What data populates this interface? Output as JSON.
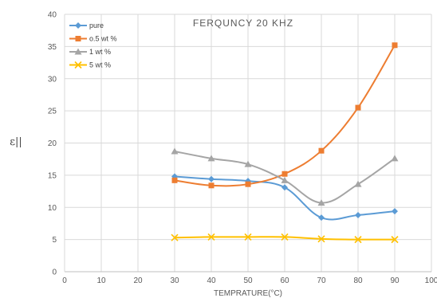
{
  "chart_data": {
    "type": "line",
    "title": "FERQUNCY 20 KHZ",
    "xlabel": "TEMPRATURE(°C)",
    "ylabel": "ε||",
    "xlim": [
      0,
      100
    ],
    "ylim": [
      0,
      40
    ],
    "xticks": [
      0,
      10,
      20,
      30,
      40,
      50,
      60,
      70,
      80,
      90,
      100
    ],
    "yticks": [
      0,
      5,
      10,
      15,
      20,
      25,
      30,
      35,
      40
    ],
    "grid": true,
    "legend_position": "top-left",
    "x": [
      30,
      40,
      50,
      60,
      70,
      80,
      90
    ],
    "series": [
      {
        "name": "pure",
        "color": "#5B9BD5",
        "marker": "diamond",
        "values": [
          14.8,
          14.4,
          14.1,
          13.1,
          8.4,
          8.8,
          9.4
        ]
      },
      {
        "name": "o.5 wt %",
        "color": "#ED7D31",
        "marker": "square",
        "values": [
          14.2,
          13.4,
          13.6,
          15.2,
          18.8,
          25.5,
          35.2
        ]
      },
      {
        "name": "1 wt %",
        "color": "#A5A5A5",
        "marker": "triangle",
        "values": [
          18.7,
          17.6,
          16.7,
          14.2,
          10.7,
          13.6,
          17.6
        ]
      },
      {
        "name": "5 wt %",
        "color": "#FFC000",
        "marker": "x",
        "values": [
          5.3,
          5.4,
          5.4,
          5.4,
          5.1,
          5.0,
          5.0
        ]
      }
    ]
  }
}
